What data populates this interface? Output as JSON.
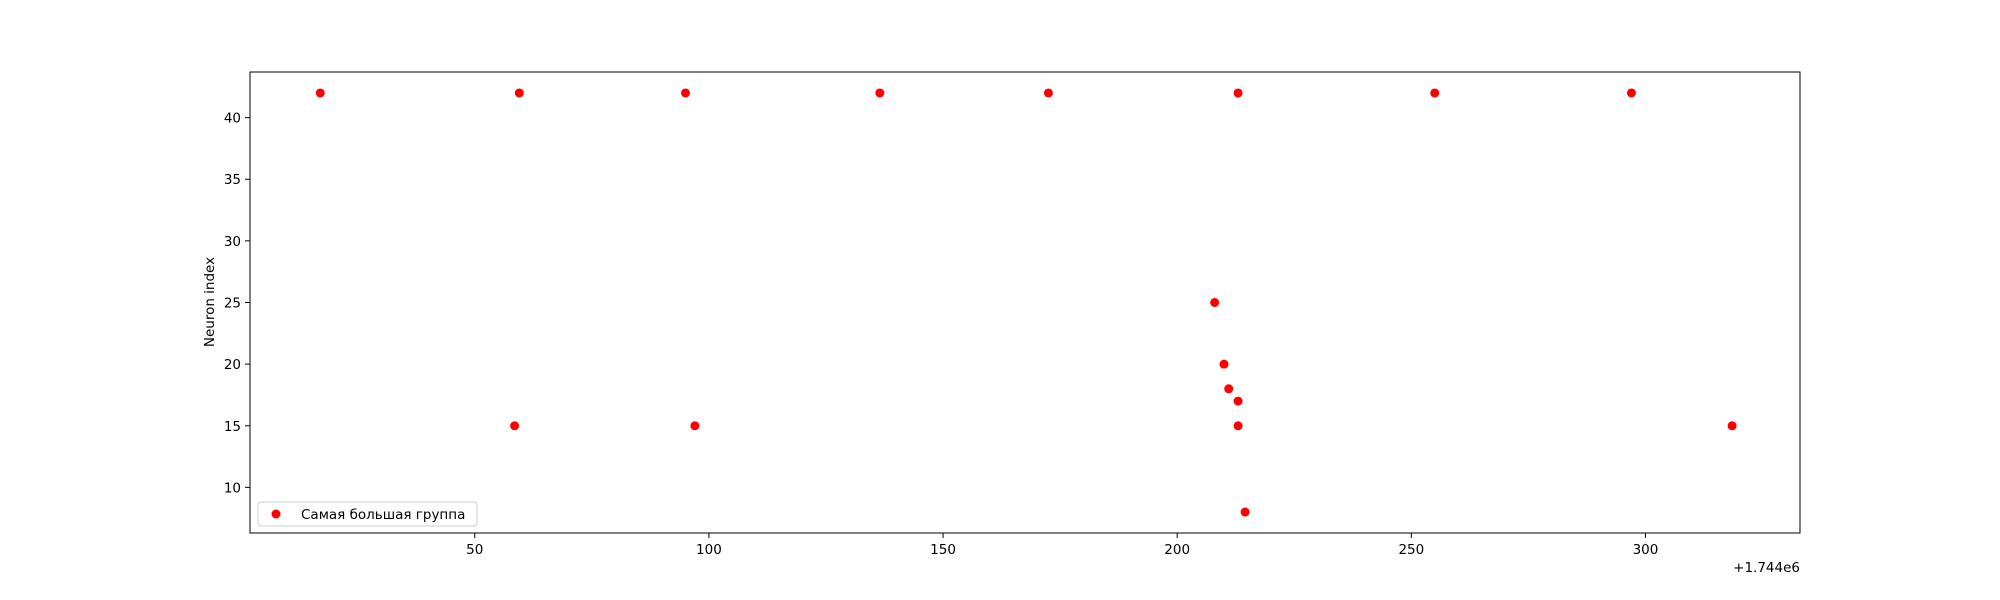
{
  "chart_data": {
    "type": "scatter",
    "title": "",
    "xlabel": "",
    "ylabel": "Neuron index",
    "x_offset_label": "+1.744e6",
    "x_offset": 1744000,
    "xlim": [
      1744002,
      1744333
    ],
    "ylim": [
      6.3,
      43.7
    ],
    "xticks": [
      50,
      100,
      150,
      200,
      250,
      300
    ],
    "yticks": [
      10,
      15,
      20,
      25,
      30,
      35,
      40
    ],
    "grid": false,
    "legend_position": "lower-left",
    "series": [
      {
        "name": "Самая большая группа",
        "color": "#ff0000",
        "points": [
          {
            "x": 1744017,
            "y": 42
          },
          {
            "x": 1744059.5,
            "y": 42
          },
          {
            "x": 1744095,
            "y": 42
          },
          {
            "x": 1744136.5,
            "y": 42
          },
          {
            "x": 1744172.5,
            "y": 42
          },
          {
            "x": 1744213,
            "y": 42
          },
          {
            "x": 1744255,
            "y": 42
          },
          {
            "x": 1744297,
            "y": 42
          },
          {
            "x": 1744058.5,
            "y": 15
          },
          {
            "x": 1744097,
            "y": 15
          },
          {
            "x": 1744208,
            "y": 25
          },
          {
            "x": 1744210,
            "y": 20
          },
          {
            "x": 1744211,
            "y": 18
          },
          {
            "x": 1744213,
            "y": 17
          },
          {
            "x": 1744213,
            "y": 15
          },
          {
            "x": 1744214.5,
            "y": 8
          },
          {
            "x": 1744318.5,
            "y": 15
          }
        ]
      }
    ]
  }
}
